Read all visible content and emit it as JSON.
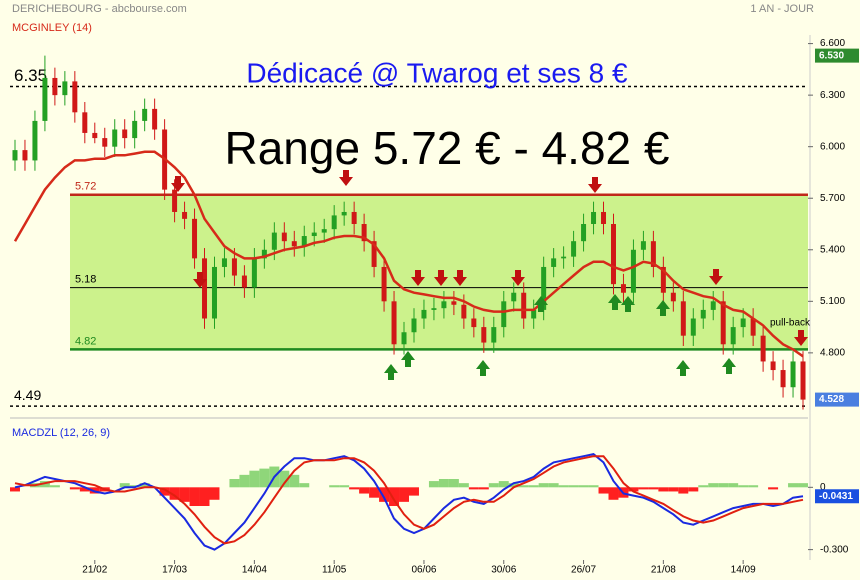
{
  "chart_data": [
    {
      "type": "candlestick",
      "title": "DERICHEBOURG - abcbourse.com",
      "subtitle": "1 AN - JOUR",
      "annotations": [
        "Dédicacé @ Twarog et ses 8 €",
        "Range 5.72 € - 4.82 €",
        "pull-back"
      ],
      "categories": [
        null,
        null,
        null,
        null,
        null,
        null,
        null,
        null,
        "21/02",
        null,
        null,
        null,
        null,
        null,
        null,
        null,
        "17/03",
        null,
        null,
        null,
        null,
        null,
        null,
        null,
        "14/04",
        null,
        null,
        null,
        null,
        null,
        null,
        null,
        "11/05",
        null,
        null,
        null,
        null,
        null,
        null,
        null,
        null,
        "06/06",
        null,
        null,
        null,
        null,
        null,
        null,
        null,
        "30/06",
        null,
        null,
        null,
        null,
        null,
        null,
        null,
        "26/07",
        null,
        null,
        null,
        null,
        null,
        null,
        null,
        "21/08",
        null,
        null,
        null,
        null,
        null,
        null,
        null,
        "14/09",
        null,
        null,
        null,
        null,
        null,
        null
      ],
      "open": [
        5.92,
        5.98,
        5.92,
        6.15,
        6.4,
        6.3,
        6.38,
        6.2,
        6.08,
        6.05,
        6.0,
        6.1,
        6.05,
        6.15,
        6.22,
        6.1,
        5.75,
        5.62,
        5.58,
        5.35,
        5.0,
        5.3,
        5.35,
        5.25,
        5.18,
        5.35,
        5.4,
        5.5,
        5.45,
        5.42,
        5.48,
        5.5,
        5.52,
        5.6,
        5.62,
        5.55,
        5.45,
        5.3,
        5.1,
        4.85,
        4.92,
        5.0,
        5.05,
        5.06,
        5.1,
        5.08,
        5.0,
        4.95,
        4.86,
        4.95,
        5.1,
        5.15,
        5.0,
        5.05,
        5.3,
        5.35,
        5.36,
        5.45,
        5.55,
        5.62,
        5.55,
        5.2,
        5.15,
        5.4,
        5.45,
        5.3,
        5.15,
        5.1,
        4.9,
        5.0,
        5.05,
        5.1,
        4.85,
        4.95,
        5.0,
        4.9,
        4.75,
        4.7,
        4.6,
        4.75
      ],
      "high": [
        6.04,
        6.04,
        6.21,
        6.53,
        6.46,
        6.44,
        6.44,
        6.26,
        6.14,
        6.11,
        6.16,
        6.16,
        6.21,
        6.28,
        6.28,
        6.16,
        5.81,
        5.68,
        5.64,
        5.41,
        5.36,
        5.41,
        5.41,
        5.31,
        5.41,
        5.46,
        5.56,
        5.56,
        5.51,
        5.54,
        5.56,
        5.58,
        5.66,
        5.68,
        5.68,
        5.61,
        5.51,
        5.36,
        5.16,
        4.98,
        5.06,
        5.11,
        5.12,
        5.16,
        5.16,
        5.14,
        5.06,
        5.01,
        5.01,
        5.16,
        5.21,
        5.21,
        5.11,
        5.36,
        5.41,
        5.42,
        5.51,
        5.61,
        5.68,
        5.68,
        5.61,
        5.26,
        5.46,
        5.51,
        5.51,
        5.36,
        5.21,
        5.16,
        5.06,
        5.11,
        5.16,
        5.16,
        5.01,
        5.06,
        5.06,
        4.96,
        4.81,
        4.76,
        4.81,
        4.81
      ],
      "low": [
        5.86,
        5.86,
        5.86,
        6.09,
        6.24,
        6.24,
        6.14,
        6.02,
        6.02,
        5.94,
        5.94,
        5.99,
        5.99,
        6.09,
        6.04,
        5.69,
        5.56,
        5.52,
        5.29,
        4.94,
        4.94,
        5.24,
        5.19,
        5.12,
        5.12,
        5.29,
        5.34,
        5.39,
        5.36,
        5.36,
        5.42,
        5.44,
        5.46,
        5.54,
        5.49,
        5.39,
        5.24,
        5.04,
        4.79,
        4.79,
        4.86,
        4.94,
        4.99,
        5.0,
        5.02,
        4.94,
        4.89,
        4.8,
        4.8,
        4.89,
        5.04,
        4.94,
        4.94,
        4.99,
        5.24,
        5.29,
        5.3,
        5.39,
        5.49,
        5.49,
        5.14,
        5.09,
        5.09,
        5.34,
        5.24,
        5.09,
        5.04,
        4.84,
        4.84,
        4.94,
        4.99,
        4.79,
        4.79,
        4.89,
        4.84,
        4.69,
        4.64,
        4.54,
        4.54,
        4.47
      ],
      "close": [
        5.98,
        5.92,
        6.15,
        6.4,
        6.3,
        6.38,
        6.2,
        6.08,
        6.05,
        6.0,
        6.1,
        6.05,
        6.15,
        6.22,
        6.1,
        5.75,
        5.62,
        5.58,
        5.35,
        5.0,
        5.3,
        5.35,
        5.25,
        5.18,
        5.35,
        5.4,
        5.5,
        5.45,
        5.42,
        5.48,
        5.5,
        5.52,
        5.6,
        5.62,
        5.55,
        5.45,
        5.3,
        5.1,
        4.85,
        4.92,
        5.0,
        5.05,
        5.06,
        5.1,
        5.08,
        5.0,
        4.95,
        4.86,
        4.95,
        5.1,
        5.15,
        5.0,
        5.05,
        5.3,
        5.35,
        5.36,
        5.45,
        5.55,
        5.62,
        5.55,
        5.2,
        5.15,
        5.4,
        5.45,
        5.3,
        5.15,
        5.1,
        4.9,
        5.0,
        5.05,
        5.1,
        4.85,
        4.95,
        5.0,
        4.9,
        4.75,
        4.7,
        4.6,
        4.75,
        4.528
      ],
      "up_color": "#23a023",
      "down_color": "#d01818",
      "series": [
        {
          "name": "MCGINLEY (14)",
          "color": "#d62a1a",
          "values": [
            5.45,
            5.55,
            5.65,
            5.75,
            5.82,
            5.88,
            5.92,
            5.92,
            5.93,
            5.93,
            5.95,
            5.95,
            5.96,
            5.97,
            5.97,
            5.93,
            5.88,
            5.82,
            5.72,
            5.58,
            5.5,
            5.42,
            5.38,
            5.35,
            5.35,
            5.36,
            5.38,
            5.4,
            5.41,
            5.42,
            5.44,
            5.45,
            5.47,
            5.48,
            5.48,
            5.47,
            5.43,
            5.35,
            5.22,
            5.17,
            5.15,
            5.14,
            5.13,
            5.12,
            5.12,
            5.1,
            5.07,
            5.05,
            5.04,
            5.04,
            5.05,
            5.05,
            5.05,
            5.1,
            5.15,
            5.2,
            5.25,
            5.3,
            5.33,
            5.33,
            5.3,
            5.28,
            5.3,
            5.33,
            5.32,
            5.28,
            5.22,
            5.17,
            5.15,
            5.13,
            5.12,
            5.08,
            5.05,
            5.04,
            5.0,
            4.96,
            4.9,
            4.85,
            4.82,
            4.78
          ]
        }
      ],
      "levels": [
        {
          "value": 6.35,
          "color": "#000000",
          "dash": true
        },
        {
          "value": 5.72,
          "color": "#c0281a",
          "dash": false
        },
        {
          "value": 5.18,
          "color": "#000000",
          "dash": false
        },
        {
          "value": 4.82,
          "color": "#1f8a1f",
          "dash": false
        },
        {
          "value": 4.49,
          "color": "#000000",
          "dash": true
        }
      ],
      "zone_color": "#ccf28c",
      "markers": [
        {
          "value": 6.53,
          "label": "6.530",
          "color": "#2e8b2e"
        },
        {
          "value": 4.528,
          "label": "4.528",
          "color": "#4a7fe0"
        }
      ],
      "ylim": [
        4.45,
        6.65
      ],
      "yticks": [
        {
          "value": 6.6,
          "label": "6.600"
        },
        {
          "value": 6.3,
          "label": "6.300"
        },
        {
          "value": 6.0,
          "label": "6.000"
        },
        {
          "value": 5.7,
          "label": "5.700"
        },
        {
          "value": 5.4,
          "label": "5.400"
        },
        {
          "value": 5.1,
          "label": "5.100"
        },
        {
          "value": 4.8,
          "label": "4.800"
        }
      ]
    },
    {
      "type": "macd",
      "title": "MACDZL (12, 26, 9)",
      "series": [
        {
          "color": "#1a2ae0",
          "values": [
            0.0,
            0.01,
            0.03,
            0.05,
            0.04,
            0.03,
            0.02,
            0.0,
            -0.02,
            -0.03,
            -0.02,
            0.0,
            0.0,
            0.02,
            0.0,
            -0.05,
            -0.1,
            -0.15,
            -0.22,
            -0.28,
            -0.3,
            -0.27,
            -0.22,
            -0.17,
            -0.1,
            -0.03,
            0.05,
            0.1,
            0.14,
            0.14,
            0.13,
            0.13,
            0.14,
            0.15,
            0.13,
            0.09,
            0.03,
            -0.05,
            -0.15,
            -0.2,
            -0.22,
            -0.2,
            -0.15,
            -0.1,
            -0.06,
            -0.05,
            -0.07,
            -0.08,
            -0.05,
            -0.01,
            0.02,
            0.03,
            0.05,
            0.09,
            0.12,
            0.13,
            0.14,
            0.15,
            0.16,
            0.12,
            0.03,
            -0.03,
            -0.04,
            -0.05,
            -0.07,
            -0.1,
            -0.13,
            -0.17,
            -0.18,
            -0.16,
            -0.14,
            -0.12,
            -0.1,
            -0.09,
            -0.08,
            -0.08,
            -0.09,
            -0.08,
            -0.05,
            -0.0431
          ]
        },
        {
          "color": "#e02010",
          "values": [
            0.02,
            0.01,
            0.01,
            0.02,
            0.03,
            0.03,
            0.03,
            0.02,
            0.01,
            -0.01,
            -0.02,
            -0.02,
            -0.01,
            0.0,
            0.0,
            -0.01,
            -0.04,
            -0.08,
            -0.13,
            -0.19,
            -0.24,
            -0.27,
            -0.26,
            -0.23,
            -0.18,
            -0.12,
            -0.05,
            0.02,
            0.08,
            0.12,
            0.13,
            0.13,
            0.13,
            0.14,
            0.14,
            0.12,
            0.08,
            0.02,
            -0.06,
            -0.13,
            -0.18,
            -0.2,
            -0.18,
            -0.14,
            -0.1,
            -0.07,
            -0.06,
            -0.07,
            -0.07,
            -0.04,
            0.0,
            0.02,
            0.04,
            0.07,
            0.1,
            0.12,
            0.13,
            0.14,
            0.15,
            0.15,
            0.09,
            0.02,
            -0.02,
            -0.04,
            -0.06,
            -0.08,
            -0.11,
            -0.14,
            -0.16,
            -0.17,
            -0.16,
            -0.14,
            -0.12,
            -0.1,
            -0.09,
            -0.08,
            -0.08,
            -0.08,
            -0.07,
            -0.06
          ]
        }
      ],
      "histogram": [
        -0.02,
        0.0,
        0.02,
        0.03,
        0.01,
        0.0,
        -0.01,
        -0.02,
        -0.03,
        -0.02,
        0.0,
        0.02,
        0.01,
        0.02,
        0.0,
        -0.04,
        -0.06,
        -0.07,
        -0.09,
        -0.09,
        -0.06,
        0.0,
        0.04,
        0.06,
        0.08,
        0.09,
        0.1,
        0.08,
        0.06,
        0.02,
        0.0,
        0.0,
        0.01,
        0.01,
        -0.01,
        -0.03,
        -0.05,
        -0.07,
        -0.09,
        -0.07,
        -0.04,
        0.0,
        0.03,
        0.04,
        0.04,
        0.02,
        -0.01,
        -0.01,
        0.02,
        0.03,
        0.02,
        0.01,
        0.01,
        0.02,
        0.02,
        0.01,
        0.01,
        0.01,
        0.01,
        -0.03,
        -0.06,
        -0.05,
        -0.02,
        -0.01,
        -0.01,
        -0.02,
        -0.02,
        -0.03,
        -0.02,
        0.01,
        0.02,
        0.02,
        0.02,
        0.01,
        0.01,
        0.0,
        -0.01,
        0.0,
        0.02,
        0.02
      ],
      "hist_up_color": "#8fd67a",
      "hist_down_color": "#ff2020",
      "markers": [
        {
          "value": -0.0431,
          "color": "#1a50e0"
        }
      ],
      "ylim": [
        -0.35,
        0.3
      ],
      "yticks": [
        0,
        {
          "value": -0.3,
          "label": "-0.300"
        }
      ]
    }
  ]
}
